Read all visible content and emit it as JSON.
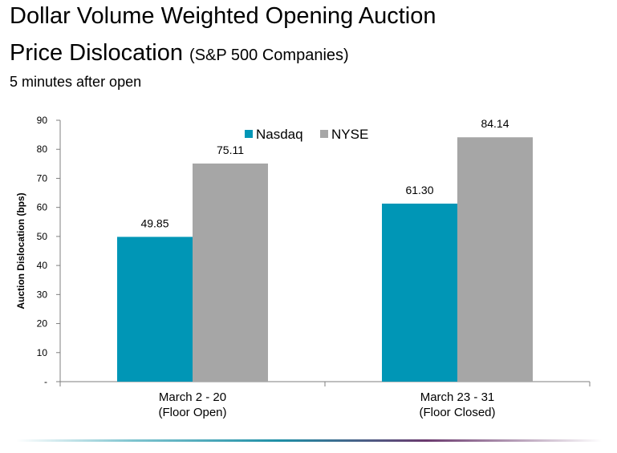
{
  "title": {
    "line1": "Dollar Volume Weighted Opening Auction",
    "line2_main": "Price Dislocation",
    "line2_sub": "(S&P 500 Companies)"
  },
  "caption": "5 minutes after open",
  "colors": {
    "nasdaq": "#0096b6",
    "nyse": "#a6a6a6",
    "axis": "#7f7f7f"
  },
  "chart_data": {
    "type": "bar",
    "categories": [
      [
        "March 2 - 20",
        "(Floor Open)"
      ],
      [
        "March 23 - 31",
        "(Floor Closed)"
      ]
    ],
    "series": [
      {
        "name": "Nasdaq",
        "values": [
          49.85,
          61.3
        ],
        "labels": [
          "49.85",
          "61.30"
        ]
      },
      {
        "name": "NYSE",
        "values": [
          75.11,
          84.14
        ],
        "labels": [
          "75.11",
          "84.14"
        ]
      }
    ],
    "ylabel": "Auction Dislocation (bps)",
    "ylim": [
      0,
      90
    ],
    "yticks": [
      0,
      10,
      20,
      30,
      40,
      50,
      60,
      70,
      80,
      90
    ],
    "ytick_labels": [
      "-",
      "10",
      "20",
      "30",
      "40",
      "50",
      "60",
      "70",
      "80",
      "90"
    ],
    "legend_position": "top-center",
    "grid": false
  }
}
